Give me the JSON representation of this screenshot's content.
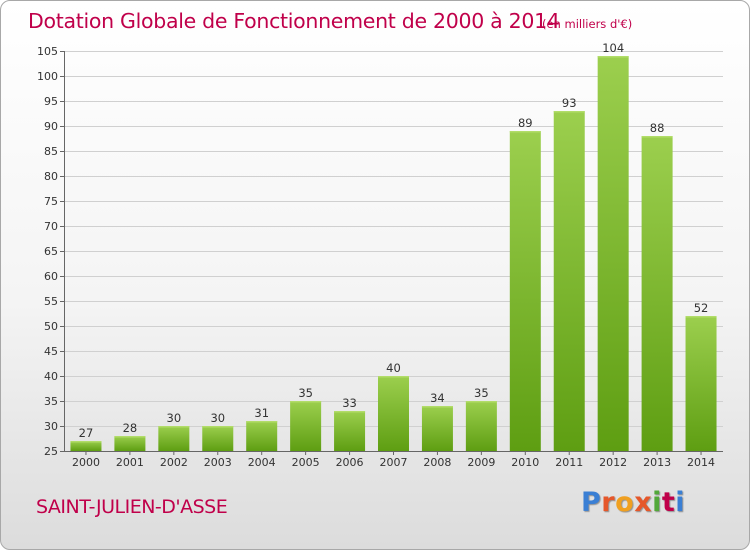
{
  "title": "Dotation Globale de Fonctionnement de 2000 à 2014",
  "unit_note": "(en milliers d'€)",
  "commune": "SAINT-JULIEN-D'ASSE",
  "logo": {
    "name": "Proxiti",
    "letters": [
      "P",
      "r",
      "o",
      "x",
      "i",
      "t",
      "i"
    ]
  },
  "colors": {
    "title": "#c0004a",
    "bar_top": "#9ccf4e",
    "bar_bottom": "#5e9e12",
    "grid": "#d0d0d0"
  },
  "chart_data": {
    "type": "bar",
    "title": "Dotation Globale de Fonctionnement de 2000 à 2014",
    "subtitle": "(en milliers d'€)",
    "xlabel": "",
    "ylabel": "",
    "categories": [
      "2000",
      "2001",
      "2002",
      "2003",
      "2004",
      "2005",
      "2006",
      "2007",
      "2008",
      "2009",
      "2010",
      "2011",
      "2012",
      "2013",
      "2014"
    ],
    "values": [
      27,
      28,
      30,
      30,
      31,
      35,
      33,
      40,
      34,
      35,
      89,
      93,
      104,
      88,
      52
    ],
    "ylim": [
      25,
      105
    ],
    "yticks": [
      25,
      30,
      35,
      40,
      45,
      50,
      55,
      60,
      65,
      70,
      75,
      80,
      85,
      90,
      95,
      100,
      105
    ],
    "grid": true,
    "data_labels": true
  }
}
